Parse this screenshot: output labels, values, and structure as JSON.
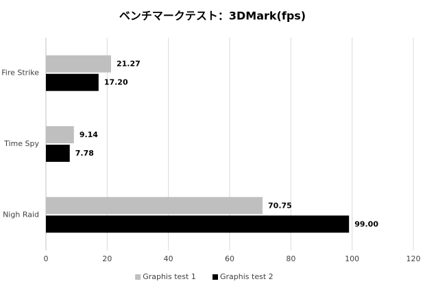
{
  "chart_data": {
    "type": "hbar",
    "title": "ベンチマークテスト：3DMark(fps)",
    "categories": [
      "Fire Strike",
      "Time Spy",
      "Nigh Raid"
    ],
    "series": [
      {
        "name": "Graphis test 1",
        "color": "#bfbfbf",
        "values": [
          21.27,
          9.14,
          70.75
        ],
        "value_labels": [
          "21.27",
          "9.14",
          "70.75"
        ]
      },
      {
        "name": "Graphis test 2",
        "color": "#000000",
        "values": [
          17.2,
          7.78,
          99
        ],
        "value_labels": [
          "17.20",
          "7.78",
          "99.00"
        ]
      }
    ],
    "xlim": [
      0,
      120
    ],
    "xticks": [
      0,
      20,
      40,
      60,
      80,
      100,
      120
    ],
    "grid": true,
    "legend": "bottom"
  }
}
